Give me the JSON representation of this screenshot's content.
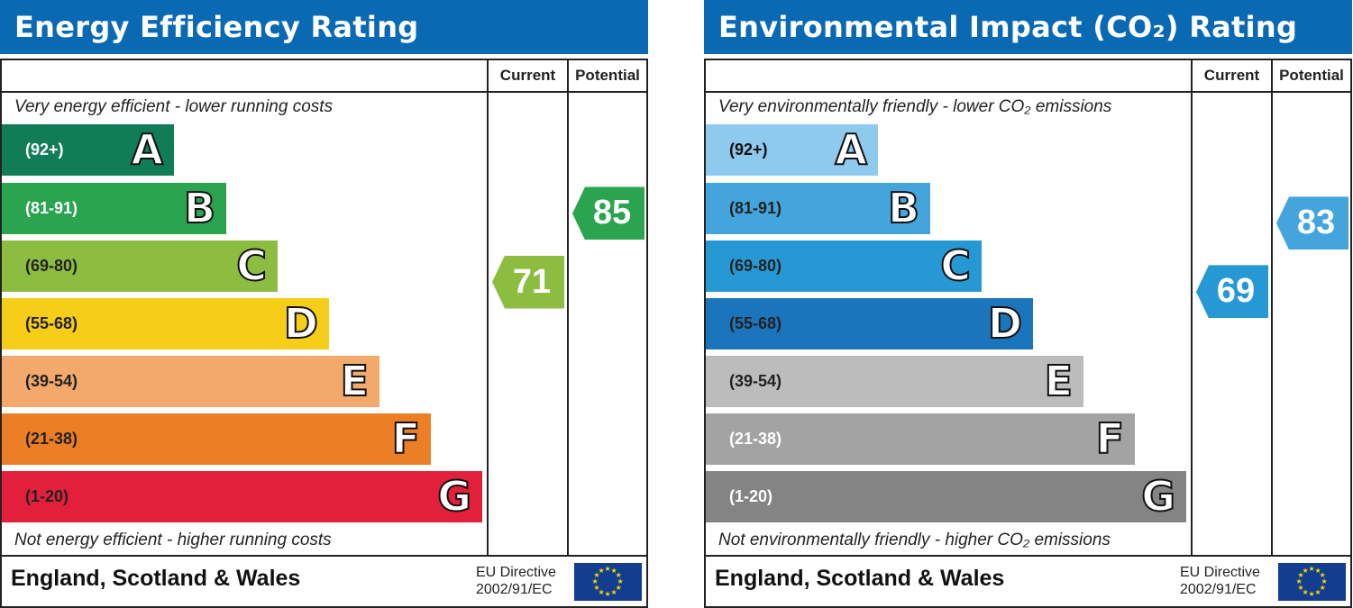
{
  "chart_data": [
    {
      "type": "bar",
      "title": "Energy Efficiency Rating",
      "columns": [
        "Current",
        "Potential"
      ],
      "top_note": "Very energy efficient - lower running costs",
      "bottom_note": "Not energy efficient - higher running costs",
      "bands": [
        {
          "letter": "A",
          "range": "(92+)",
          "color": "#107d57",
          "text": "#ffffff"
        },
        {
          "letter": "B",
          "range": "(81-91)",
          "color": "#2ba450",
          "text": "#ffffff"
        },
        {
          "letter": "C",
          "range": "(69-80)",
          "color": "#8dbd40",
          "text": "#222222"
        },
        {
          "letter": "D",
          "range": "(55-68)",
          "color": "#f6cd18",
          "text": "#222222"
        },
        {
          "letter": "E",
          "range": "(39-54)",
          "color": "#f2a96b",
          "text": "#222222"
        },
        {
          "letter": "F",
          "range": "(21-38)",
          "color": "#ec7f26",
          "text": "#222222"
        },
        {
          "letter": "G",
          "range": "(1-20)",
          "color": "#e3203b",
          "text": "#222222"
        }
      ],
      "current": {
        "value": 71,
        "label": "71",
        "color": "#8dbd40"
      },
      "potential": {
        "value": 85,
        "label": "85",
        "color": "#2ba450"
      },
      "footer": "England, Scotland & Wales",
      "directive": [
        "EU Directive",
        "2002/91/EC"
      ]
    },
    {
      "type": "bar",
      "title": "Environmental Impact (CO₂) Rating",
      "columns": [
        "Current",
        "Potential"
      ],
      "top_note": "Very environmentally friendly - lower CO₂ emissions",
      "bottom_note": "Not environmentally friendly - higher CO₂ emissions",
      "bands": [
        {
          "letter": "A",
          "range": "(92+)",
          "color": "#8ec9ee",
          "text": "#111111"
        },
        {
          "letter": "B",
          "range": "(81-91)",
          "color": "#43a5dc",
          "text": "#222222"
        },
        {
          "letter": "C",
          "range": "(69-80)",
          "color": "#2699d4",
          "text": "#222222"
        },
        {
          "letter": "D",
          "range": "(55-68)",
          "color": "#1b75bc",
          "text": "#222222"
        },
        {
          "letter": "E",
          "range": "(39-54)",
          "color": "#bcbcbc",
          "text": "#222222"
        },
        {
          "letter": "F",
          "range": "(21-38)",
          "color": "#a3a3a3",
          "text": "#ffffff"
        },
        {
          "letter": "G",
          "range": "(1-20)",
          "color": "#848484",
          "text": "#ffffff"
        }
      ],
      "current": {
        "value": 69,
        "label": "69",
        "color": "#2699d4"
      },
      "potential": {
        "value": 83,
        "label": "83",
        "color": "#43a5dc"
      },
      "footer": "England, Scotland & Wales",
      "directive": [
        "EU Directive",
        "2002/91/EC"
      ]
    }
  ]
}
